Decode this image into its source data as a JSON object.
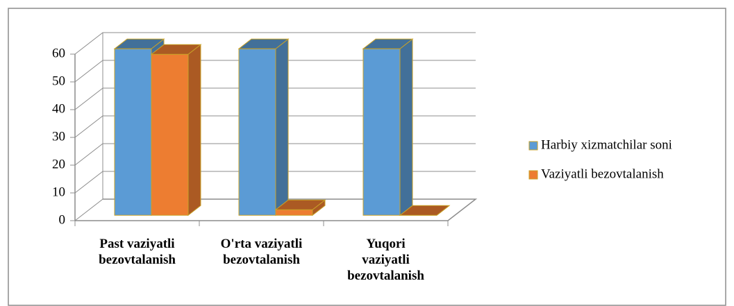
{
  "chart_data": {
    "type": "bar3d",
    "categories": [
      "Past vaziyatli\nbezovtalanish",
      "O'rta vaziyatli\nbezovtalanish",
      "Yuqori\nvaziyatli\nbezovtalanish"
    ],
    "series": [
      {
        "name": "Harbiy xizmatchilar soni",
        "color": "#5b9bd5",
        "values": [
          60,
          60,
          60
        ]
      },
      {
        "name": "Vaziyatli bezovtalanish",
        "color": "#ed7d31",
        "values": [
          58,
          2,
          0
        ]
      }
    ],
    "ylim": [
      0,
      60
    ],
    "yticks": [
      0,
      10,
      20,
      30,
      40,
      50,
      60
    ],
    "grid": true,
    "legend": "right"
  }
}
